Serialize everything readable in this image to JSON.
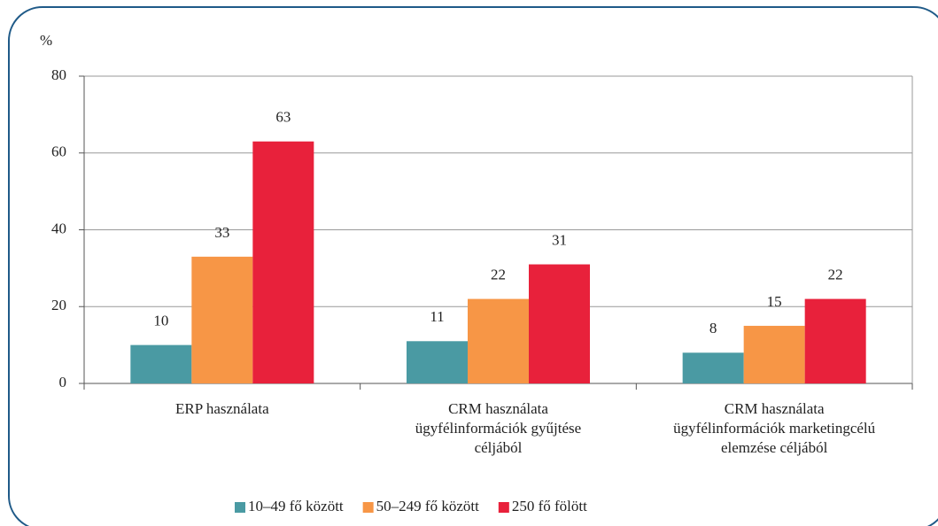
{
  "chart_data": {
    "type": "bar",
    "y_label": "%",
    "categories": [
      "ERP használata",
      "CRM használata\nügyfélinformációk gyűjtése\ncéljából",
      "CRM használata\nügyfélinformációk marketingcélú\nelemzése céljából"
    ],
    "series": [
      {
        "name": "10–49 fő között",
        "color": "#4a9aa3",
        "values": [
          10,
          11,
          8
        ]
      },
      {
        "name": "50–249 fő között",
        "color": "#f79646",
        "values": [
          33,
          22,
          15
        ]
      },
      {
        "name": "250 fő fölött",
        "color": "#e8213b",
        "values": [
          63,
          31,
          22
        ]
      }
    ],
    "ylim": [
      0,
      80
    ],
    "yticks": [
      0,
      20,
      40,
      60,
      80
    ],
    "grid": true,
    "legend": "bottom"
  }
}
